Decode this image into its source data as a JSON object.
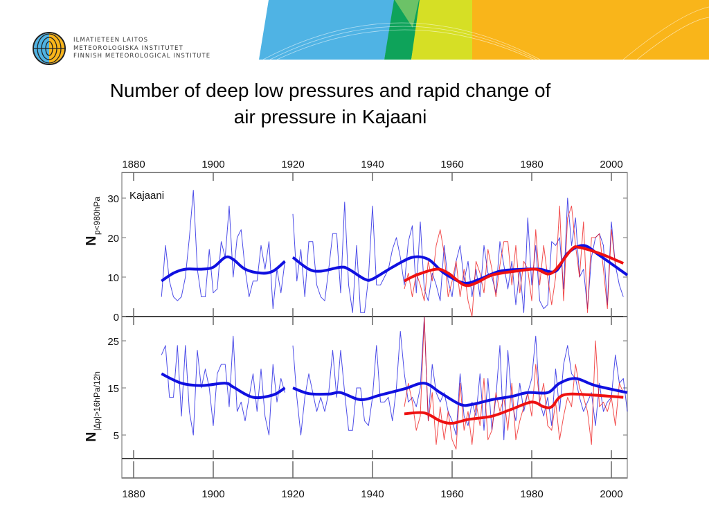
{
  "header": {
    "org_lines": [
      "ILMATIETEEN LAITOS",
      "METEOROLOGISKA INSTITUTET",
      "FINNISH METEOROLOGICAL INSTITUTE"
    ],
    "banner_colors": [
      "#4fb3e4",
      "#0ea35a",
      "#d6df25",
      "#f9b51a"
    ]
  },
  "slide": {
    "title_line1": "Number of deep low pressures and rapid change of",
    "title_line2": "air pressure in Kajaani"
  },
  "chart_data": {
    "type": "line",
    "station_label": "Kajaani",
    "x_ticks": [
      "1880",
      "1900",
      "1920",
      "1940",
      "1960",
      "1980",
      "2000"
    ],
    "xlim": [
      1877,
      2004
    ],
    "colors": {
      "blue": "#1010e0",
      "red": "#ee1111"
    },
    "panels": [
      {
        "ylabel_main": "N",
        "ylabel_sub": "p<980hPa",
        "ylim": [
          0,
          36.5
        ],
        "y_ticks": [
          "0",
          "10",
          "20",
          "30"
        ],
        "series": [
          {
            "color": "blue",
            "style": "raw",
            "segments": [
              {
                "start": 1887,
                "values": [
                  5,
                  18,
                  9,
                  5,
                  4,
                  5,
                  10,
                  20,
                  32,
                  12,
                  5,
                  5,
                  17,
                  6,
                  7,
                  19,
                  15,
                  28,
                  10,
                  20,
                  22,
                  12,
                  5,
                  9,
                  9,
                  18,
                  12,
                  19,
                  2,
                  12,
                  6,
                  14
                ]
              },
              {
                "start": 1920,
                "values": [
                  26,
                  9,
                  17,
                  5,
                  19,
                  19,
                  8,
                  5,
                  4,
                  12,
                  21,
                  21,
                  6,
                  29,
                  8,
                  1,
                  18,
                  1,
                  1,
                  10,
                  28,
                  8,
                  8,
                  10,
                  12,
                  17,
                  20,
                  15,
                  8,
                  19,
                  23,
                  6,
                  24,
                  7,
                  4,
                  11,
                  8,
                  4,
                  18,
                  9,
                  5,
                  14,
                  18,
                  9,
                  14,
                  5,
                  12,
                  5,
                  18,
                  11,
                  10,
                  6,
                  19,
                  13,
                  7,
                  14,
                  3,
                  12,
                  1,
                  25,
                  8,
                  18,
                  4,
                  2,
                  3,
                  19,
                  18,
                  20,
                  7,
                  30,
                  18,
                  25,
                  10,
                  12,
                  2,
                  15,
                  20,
                  21,
                  18,
                  3,
                  24,
                  13,
                  8,
                  5
                ]
              }
            ]
          },
          {
            "color": "red",
            "style": "raw",
            "segments": [
              {
                "start": 1948,
                "values": [
                  7,
                  11,
                  5,
                  11,
                  8,
                  4,
                  14,
                  9,
                  18,
                  22,
                  16,
                  5,
                  9,
                  14,
                  5,
                  12,
                  4,
                  0,
                  14,
                  11,
                  6,
                  17,
                  12,
                  5,
                  13,
                  19,
                  19,
                  8,
                  18,
                  6,
                  14,
                  12,
                  4,
                  22,
                  8,
                  18,
                  10,
                  3,
                  10,
                  28,
                  4,
                  25,
                  28,
                  18,
                  10,
                  24,
                  1,
                  20,
                  20,
                  21,
                  12,
                  2,
                  22,
                  13
                ]
              }
            ]
          },
          {
            "color": "blue",
            "style": "smooth",
            "segments": [
              {
                "points": [
                  [
                    1887,
                    9
                  ],
                  [
                    1890,
                    11
                  ],
                  [
                    1893,
                    12
                  ],
                  [
                    1897,
                    12
                  ],
                  [
                    1900,
                    12.5
                  ],
                  [
                    1903,
                    15
                  ],
                  [
                    1905,
                    14.5
                  ],
                  [
                    1908,
                    12
                  ],
                  [
                    1912,
                    11
                  ],
                  [
                    1915,
                    11.5
                  ],
                  [
                    1918,
                    14
                  ]
                ]
              },
              {
                "points": [
                  [
                    1920,
                    15
                  ],
                  [
                    1924,
                    12
                  ],
                  [
                    1927,
                    11.5
                  ],
                  [
                    1932,
                    12.5
                  ],
                  [
                    1934,
                    12
                  ],
                  [
                    1938,
                    9.5
                  ],
                  [
                    1940,
                    9.5
                  ],
                  [
                    1945,
                    12.5
                  ],
                  [
                    1950,
                    15
                  ],
                  [
                    1954,
                    14.5
                  ],
                  [
                    1958,
                    11
                  ],
                  [
                    1963,
                    8.5
                  ],
                  [
                    1967,
                    9.5
                  ],
                  [
                    1972,
                    11.5
                  ],
                  [
                    1978,
                    12
                  ],
                  [
                    1982,
                    12
                  ],
                  [
                    1986,
                    11.5
                  ],
                  [
                    1989,
                    16
                  ],
                  [
                    1993,
                    18
                  ],
                  [
                    1997,
                    15.5
                  ],
                  [
                    2004,
                    10.5
                  ]
                ]
              }
            ]
          },
          {
            "color": "red",
            "style": "smooth",
            "segments": [
              {
                "points": [
                  [
                    1948,
                    9
                  ],
                  [
                    1951,
                    10.5
                  ],
                  [
                    1956,
                    12
                  ],
                  [
                    1959,
                    11
                  ],
                  [
                    1963,
                    8
                  ],
                  [
                    1966,
                    8.5
                  ],
                  [
                    1970,
                    10.5
                  ],
                  [
                    1976,
                    11.5
                  ],
                  [
                    1981,
                    12
                  ],
                  [
                    1985,
                    11
                  ],
                  [
                    1990,
                    17
                  ],
                  [
                    1992,
                    17.5
                  ],
                  [
                    1997,
                    16
                  ],
                  [
                    2003,
                    13.5
                  ]
                ]
              }
            ]
          }
        ]
      },
      {
        "ylabel_main": "N",
        "ylabel_sub": "|Δp|>16hPa/12h",
        "ylim": [
          0,
          30
        ],
        "y_ticks": [
          "5",
          "15",
          "25"
        ],
        "series": [
          {
            "color": "blue",
            "style": "raw",
            "segments": [
              {
                "start": 1887,
                "values": [
                  22,
                  24,
                  13,
                  13,
                  24,
                  9,
                  24,
                  10,
                  5,
                  23,
                  15,
                  19,
                  15,
                  7,
                  18,
                  20,
                  20,
                  11,
                  26,
                  10,
                  12,
                  8,
                  13,
                  18,
                  10,
                  19,
                  9,
                  5,
                  20,
                  12,
                  17,
                  14
                ]
              },
              {
                "start": 1920,
                "values": [
                  24,
                  13,
                  5,
                  13,
                  18,
                  14,
                  10,
                  13,
                  10,
                  14,
                  23,
                  13,
                  23,
                  14,
                  6,
                  6,
                  15,
                  15,
                  8,
                  7,
                  13,
                  24,
                  12,
                  12,
                  13,
                  8,
                  15,
                  27,
                  18,
                  12,
                  13,
                  11,
                  15,
                  30,
                  8,
                  20,
                  14,
                  12,
                  14,
                  10,
                  8,
                  5,
                  18,
                  9,
                  7,
                  12,
                  9,
                  18,
                  6,
                  17,
                  6,
                  13,
                  24,
                  4,
                  23,
                  12,
                  8,
                  16,
                  10,
                  14,
                  17,
                  26,
                  12,
                  9,
                  13,
                  7,
                  19,
                  10,
                  20,
                  24,
                  18,
                  17,
                  13,
                  10,
                  12,
                  14,
                  7,
                  16,
                  10,
                  12,
                  13,
                  22,
                  16,
                  17,
                  10
                ]
              }
            ]
          },
          {
            "color": "red",
            "style": "raw",
            "segments": [
              {
                "start": 1948,
                "values": [
                  11,
                  16,
                  12,
                  6,
                  9,
                  30,
                  8,
                  14,
                  3,
                  11,
                  4,
                  10,
                  4,
                  2,
                  16,
                  6,
                  10,
                  3,
                  12,
                  7,
                  17,
                  4,
                  6,
                  14,
                  10,
                  13,
                  6,
                  16,
                  4,
                  8,
                  11,
                  14,
                  9,
                  20,
                  12,
                  16,
                  7,
                  6,
                  12,
                  4,
                  9,
                  13,
                  11,
                  20,
                  15,
                  13,
                  10,
                  3,
                  25,
                  11,
                  12,
                  10,
                  13,
                  7,
                  16,
                  14
                ]
              }
            ]
          },
          {
            "color": "blue",
            "style": "smooth",
            "segments": [
              {
                "points": [
                  [
                    1887,
                    18
                  ],
                  [
                    1892,
                    16
                  ],
                  [
                    1897,
                    15.5
                  ],
                  [
                    1903,
                    16
                  ],
                  [
                    1905,
                    15.2
                  ],
                  [
                    1910,
                    13
                  ],
                  [
                    1915,
                    13.5
                  ],
                  [
                    1918,
                    15
                  ]
                ]
              },
              {
                "points": [
                  [
                    1920,
                    15
                  ],
                  [
                    1924,
                    13.8
                  ],
                  [
                    1929,
                    13.7
                  ],
                  [
                    1932,
                    14
                  ],
                  [
                    1937,
                    12.5
                  ],
                  [
                    1942,
                    13.5
                  ],
                  [
                    1948,
                    14.8
                  ],
                  [
                    1953,
                    16
                  ],
                  [
                    1957,
                    14
                  ],
                  [
                    1962,
                    11.5
                  ],
                  [
                    1965,
                    11.5
                  ],
                  [
                    1970,
                    12.5
                  ],
                  [
                    1975,
                    13.2
                  ],
                  [
                    1979,
                    14
                  ],
                  [
                    1984,
                    14
                  ],
                  [
                    1987,
                    16
                  ],
                  [
                    1991,
                    17
                  ],
                  [
                    1996,
                    15.5
                  ],
                  [
                    2004,
                    14
                  ]
                ]
              }
            ]
          },
          {
            "color": "red",
            "style": "smooth",
            "segments": [
              {
                "points": [
                  [
                    1948,
                    9.5
                  ],
                  [
                    1953,
                    9.7
                  ],
                  [
                    1957,
                    8
                  ],
                  [
                    1960,
                    7.5
                  ],
                  [
                    1964,
                    8.3
                  ],
                  [
                    1970,
                    9
                  ],
                  [
                    1975,
                    10.5
                  ],
                  [
                    1980,
                    12
                  ],
                  [
                    1983,
                    11
                  ],
                  [
                    1985,
                    11
                  ],
                  [
                    1988,
                    13.5
                  ],
                  [
                    1995,
                    13.5
                  ],
                  [
                    2003,
                    13
                  ]
                ]
              }
            ]
          }
        ]
      }
    ]
  }
}
